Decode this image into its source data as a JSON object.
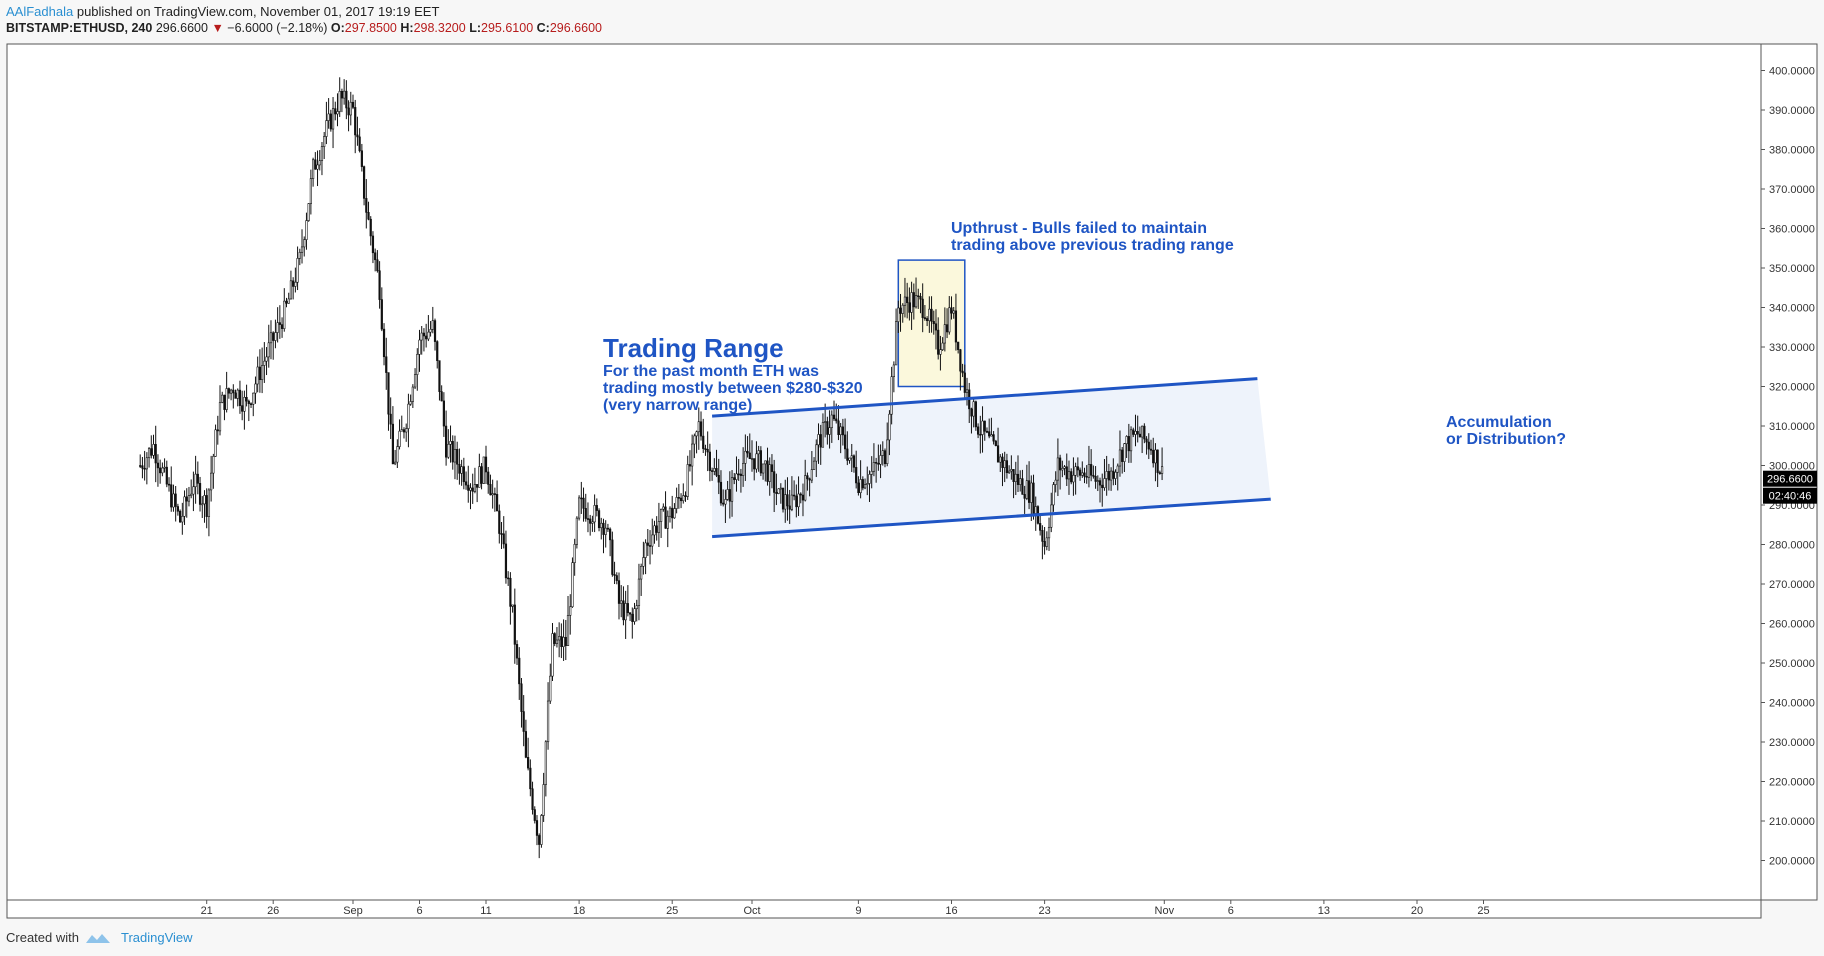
{
  "header": {
    "author": "AAlFadhala",
    "published": "published on TradingView.com, November 01, 2017 19:19 EET",
    "symbol": "BITSTAMP:ETHUSD, 240",
    "last": "296.6600",
    "change": "−6.6000 (−2.18%)",
    "o_label": "O:",
    "o_value": "297.8500",
    "h_label": "H:",
    "h_value": "298.3200",
    "l_label": "L:",
    "l_value": "295.6100",
    "c_label": "C:",
    "c_value": "296.6600"
  },
  "footer": {
    "created_with": "Created with",
    "brand": "TradingView"
  },
  "annotations": {
    "trading_range_title": "Trading Range",
    "trading_range_line1": "For the past month ETH was",
    "trading_range_line2": "trading mostly between $280-$320",
    "trading_range_line3": "(very narrow range)",
    "upthrust_line1": "Upthrust - Bulls failed to maintain",
    "upthrust_line2": "trading above previous trading range",
    "accum_line1": "Accumulation",
    "accum_line2": "or Distribution?"
  },
  "colors": {
    "accent": "#1f55c4",
    "up": "#26a69a",
    "down": "#b71c1c",
    "price_tag_bg": "#000000",
    "range_fill": "#eef3fb",
    "upthrust_fill": "#fbf8dc"
  },
  "chart_data": {
    "type": "candlestick",
    "symbol": "BITSTAMP:ETHUSD",
    "interval": "240",
    "last_price": "296.6600",
    "countdown": "02:40:46",
    "y_ticks": [
      "200.0000",
      "210.0000",
      "220.0000",
      "230.0000",
      "240.0000",
      "250.0000",
      "260.0000",
      "270.0000",
      "280.0000",
      "290.0000",
      "300.0000",
      "310.0000",
      "320.0000",
      "330.0000",
      "340.0000",
      "350.0000",
      "360.0000",
      "370.0000",
      "380.0000",
      "390.0000",
      "400.0000"
    ],
    "ylim": [
      195,
      402
    ],
    "x_ticks": [
      {
        "label": "21",
        "date": "2017-08-21"
      },
      {
        "label": "26",
        "date": "2017-08-26"
      },
      {
        "label": "Sep",
        "date": "2017-09-01"
      },
      {
        "label": "6",
        "date": "2017-09-06"
      },
      {
        "label": "11",
        "date": "2017-09-11"
      },
      {
        "label": "18",
        "date": "2017-09-18"
      },
      {
        "label": "25",
        "date": "2017-09-25"
      },
      {
        "label": "Oct",
        "date": "2017-10-01"
      },
      {
        "label": "9",
        "date": "2017-10-09"
      },
      {
        "label": "16",
        "date": "2017-10-16"
      },
      {
        "label": "23",
        "date": "2017-10-23"
      },
      {
        "label": "Nov",
        "date": "2017-11-01"
      },
      {
        "label": "6",
        "date": "2017-11-06"
      },
      {
        "label": "13",
        "date": "2017-11-13"
      },
      {
        "label": "20",
        "date": "2017-11-20"
      },
      {
        "label": "25",
        "date": "2017-11-25"
      }
    ],
    "price_path": [
      [
        "2017-08-16",
        300
      ],
      [
        "2017-08-17",
        305
      ],
      [
        "2017-08-18",
        295
      ],
      [
        "2017-08-19",
        286
      ],
      [
        "2017-08-20",
        296
      ],
      [
        "2017-08-21",
        290
      ],
      [
        "2017-08-22",
        315
      ],
      [
        "2017-08-23",
        320
      ],
      [
        "2017-08-24",
        315
      ],
      [
        "2017-08-25",
        324
      ],
      [
        "2017-08-26",
        332
      ],
      [
        "2017-08-27",
        340
      ],
      [
        "2017-08-28",
        352
      ],
      [
        "2017-08-29",
        375
      ],
      [
        "2017-08-30",
        385
      ],
      [
        "2017-08-31",
        393
      ],
      [
        "2017-09-01",
        390
      ],
      [
        "2017-09-02",
        365
      ],
      [
        "2017-09-03",
        345
      ],
      [
        "2017-09-04",
        300
      ],
      [
        "2017-09-05",
        312
      ],
      [
        "2017-09-06",
        332
      ],
      [
        "2017-09-07",
        335
      ],
      [
        "2017-09-08",
        305
      ],
      [
        "2017-09-09",
        300
      ],
      [
        "2017-09-10",
        295
      ],
      [
        "2017-09-11",
        300
      ],
      [
        "2017-09-12",
        285
      ],
      [
        "2017-09-13",
        262
      ],
      [
        "2017-09-14",
        225
      ],
      [
        "2017-09-15",
        205
      ],
      [
        "2017-09-16",
        255
      ],
      [
        "2017-09-17",
        255
      ],
      [
        "2017-09-18",
        290
      ],
      [
        "2017-09-19",
        288
      ],
      [
        "2017-09-20",
        285
      ],
      [
        "2017-09-21",
        265
      ],
      [
        "2017-09-22",
        260
      ],
      [
        "2017-09-23",
        280
      ],
      [
        "2017-09-24",
        286
      ],
      [
        "2017-09-25",
        288
      ],
      [
        "2017-09-26",
        295
      ],
      [
        "2017-09-27",
        310
      ],
      [
        "2017-09-28",
        300
      ],
      [
        "2017-09-29",
        290
      ],
      [
        "2017-09-30",
        300
      ],
      [
        "2017-10-01",
        302
      ],
      [
        "2017-10-02",
        300
      ],
      [
        "2017-10-03",
        292
      ],
      [
        "2017-10-04",
        290
      ],
      [
        "2017-10-05",
        295
      ],
      [
        "2017-10-06",
        306
      ],
      [
        "2017-10-07",
        312
      ],
      [
        "2017-10-08",
        305
      ],
      [
        "2017-10-09",
        296
      ],
      [
        "2017-10-10",
        298
      ],
      [
        "2017-10-11",
        303
      ],
      [
        "2017-10-12",
        340
      ],
      [
        "2017-10-13",
        342
      ],
      [
        "2017-10-14",
        340
      ],
      [
        "2017-10-15",
        330
      ],
      [
        "2017-10-16",
        340
      ],
      [
        "2017-10-17",
        320
      ],
      [
        "2017-10-18",
        310
      ],
      [
        "2017-10-19",
        305
      ],
      [
        "2017-10-20",
        300
      ],
      [
        "2017-10-21",
        296
      ],
      [
        "2017-10-22",
        293
      ],
      [
        "2017-10-23",
        280
      ],
      [
        "2017-10-24",
        300
      ],
      [
        "2017-10-25",
        298
      ],
      [
        "2017-10-26",
        298
      ],
      [
        "2017-10-27",
        296
      ],
      [
        "2017-10-28",
        298
      ],
      [
        "2017-10-29",
        305
      ],
      [
        "2017-10-30",
        308
      ],
      [
        "2017-10-31",
        305
      ],
      [
        "2017-11-01",
        296.66
      ]
    ],
    "channel_upper": [
      [
        "2017-09-28",
        312.5
      ],
      [
        "2017-11-08",
        322
      ]
    ],
    "channel_lower": [
      [
        "2017-09-28",
        282
      ],
      [
        "2017-11-09",
        291.5
      ]
    ],
    "upthrust_box": {
      "from": "2017-10-12",
      "to": "2017-10-17",
      "low": 320,
      "high": 352
    }
  }
}
